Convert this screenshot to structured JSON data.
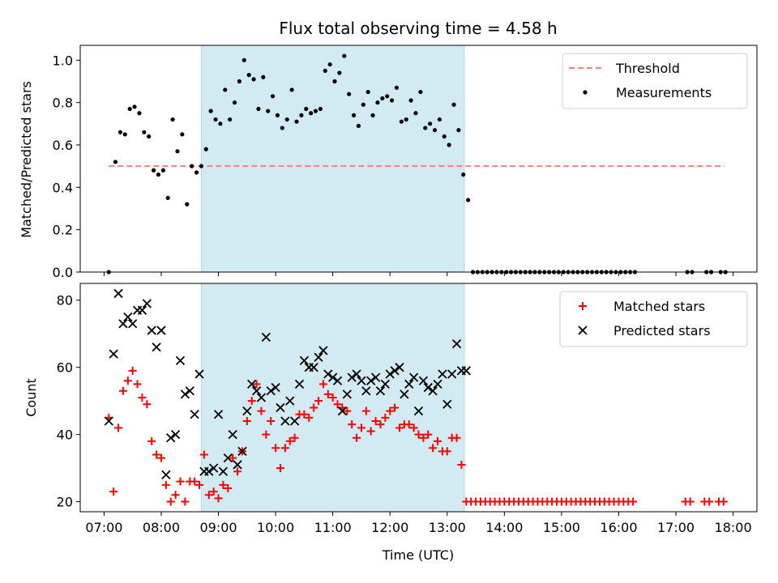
{
  "figure": {
    "title": "Flux total observing time = 4.58 h",
    "xlabel": "Time (UTC)"
  },
  "colors": {
    "threshold": "#ff7f7f",
    "measurements": "#000000",
    "matched": "#ff0000",
    "predicted": "#000000",
    "shade": "#add8e6"
  },
  "chart_data": [
    {
      "type": "scatter",
      "ylabel": "Matched/Predicted stars",
      "xlim": [
        "06:35",
        "18:25"
      ],
      "ylim": [
        0,
        1.07
      ],
      "x_tick_labels": [
        "07:00",
        "08:00",
        "09:00",
        "10:00",
        "11:00",
        "12:00",
        "13:00",
        "14:00",
        "15:00",
        "16:00",
        "17:00",
        "18:00"
      ],
      "y_ticks": [
        0.0,
        0.2,
        0.4,
        0.6,
        0.8,
        1.0
      ],
      "y_tick_labels": [
        "0.0",
        "0.2",
        "0.4",
        "0.6",
        "0.8",
        "1.0"
      ],
      "legend_position": "top-right",
      "shaded_span": [
        "08:42",
        "13:18"
      ],
      "threshold": {
        "name": "Threshold",
        "value": 0.5,
        "x_range": [
          "07:05",
          "17:51"
        ]
      },
      "series": [
        {
          "name": "Measurements",
          "x": [
            "07:05",
            "07:12",
            "07:17",
            "07:22",
            "07:27",
            "07:32",
            "07:37",
            "07:42",
            "07:47",
            "07:52",
            "07:57",
            "08:02",
            "08:07",
            "08:12",
            "08:17",
            "08:22",
            "08:27",
            "08:32",
            "08:37",
            "08:42",
            "08:47",
            "08:52",
            "08:57",
            "09:02",
            "09:07",
            "09:12",
            "09:17",
            "09:22",
            "09:27",
            "09:32",
            "09:37",
            "09:42",
            "09:47",
            "09:52",
            "09:57",
            "10:02",
            "10:07",
            "10:12",
            "10:17",
            "10:22",
            "10:27",
            "10:32",
            "10:37",
            "10:42",
            "10:47",
            "10:52",
            "10:57",
            "11:02",
            "11:07",
            "11:12",
            "11:17",
            "11:22",
            "11:27",
            "11:32",
            "11:37",
            "11:42",
            "11:47",
            "11:52",
            "11:57",
            "12:02",
            "12:07",
            "12:12",
            "12:17",
            "12:22",
            "12:27",
            "12:32",
            "12:37",
            "12:42",
            "12:47",
            "12:52",
            "12:57",
            "13:02",
            "13:07",
            "13:12",
            "13:17",
            "13:22",
            "13:27",
            "13:32",
            "13:37",
            "13:42",
            "13:47",
            "13:52",
            "13:57",
            "14:02",
            "14:07",
            "14:12",
            "14:17",
            "14:22",
            "14:27",
            "14:32",
            "14:37",
            "14:42",
            "14:47",
            "14:52",
            "14:57",
            "15:02",
            "15:07",
            "15:12",
            "15:17",
            "15:22",
            "15:27",
            "15:32",
            "15:37",
            "15:42",
            "15:47",
            "15:52",
            "15:57",
            "16:02",
            "16:07",
            "16:12",
            "16:17",
            "17:12",
            "17:17",
            "17:32",
            "17:37",
            "17:47",
            "17:52"
          ],
          "y": [
            0.0,
            0.52,
            0.66,
            0.65,
            0.77,
            0.78,
            0.75,
            0.66,
            0.64,
            0.48,
            0.46,
            0.48,
            0.35,
            0.72,
            0.57,
            0.65,
            0.32,
            0.5,
            0.47,
            0.5,
            0.58,
            0.76,
            0.72,
            0.7,
            0.86,
            0.72,
            0.8,
            0.9,
            1.0,
            0.93,
            0.91,
            0.77,
            0.92,
            0.76,
            0.83,
            0.74,
            0.68,
            0.72,
            0.86,
            0.71,
            0.74,
            0.77,
            0.75,
            0.76,
            0.77,
            0.95,
            0.98,
            0.9,
            0.94,
            1.02,
            0.84,
            0.74,
            0.69,
            0.79,
            0.85,
            0.74,
            0.8,
            0.82,
            0.83,
            0.81,
            0.87,
            0.71,
            0.72,
            0.81,
            0.75,
            0.85,
            0.68,
            0.7,
            0.67,
            0.72,
            0.64,
            0.6,
            0.79,
            0.67,
            0.46,
            0.34,
            0,
            0,
            0,
            0,
            0,
            0,
            0,
            0,
            0,
            0,
            0,
            0,
            0,
            0,
            0,
            0,
            0,
            0,
            0,
            0,
            0,
            0,
            0,
            0,
            0,
            0,
            0,
            0,
            0,
            0,
            0,
            0,
            0,
            0,
            0,
            0,
            0,
            0,
            0,
            0,
            0
          ]
        }
      ]
    },
    {
      "type": "scatter",
      "ylabel": "Count",
      "xlim": [
        "06:35",
        "18:25"
      ],
      "ylim": [
        17,
        85
      ],
      "x_tick_labels": [
        "07:00",
        "08:00",
        "09:00",
        "10:00",
        "11:00",
        "12:00",
        "13:00",
        "14:00",
        "15:00",
        "16:00",
        "17:00",
        "18:00"
      ],
      "y_ticks": [
        20,
        40,
        60,
        80
      ],
      "y_tick_labels": [
        "20",
        "40",
        "60",
        "80"
      ],
      "legend_position": "top-right",
      "shaded_span": [
        "08:42",
        "13:18"
      ],
      "series": [
        {
          "name": "Matched stars",
          "marker": "plus",
          "x": [
            "07:05",
            "07:10",
            "07:15",
            "07:20",
            "07:25",
            "07:30",
            "07:35",
            "07:40",
            "07:45",
            "07:50",
            "07:55",
            "08:00",
            "08:05",
            "08:10",
            "08:15",
            "08:20",
            "08:25",
            "08:30",
            "08:35",
            "08:40",
            "08:45",
            "08:50",
            "08:55",
            "09:00",
            "09:05",
            "09:10",
            "09:15",
            "09:20",
            "09:25",
            "09:30",
            "09:35",
            "09:40",
            "09:45",
            "09:50",
            "09:55",
            "10:00",
            "10:05",
            "10:10",
            "10:15",
            "10:20",
            "10:25",
            "10:30",
            "10:35",
            "10:40",
            "10:45",
            "10:50",
            "10:55",
            "11:00",
            "11:05",
            "11:10",
            "11:15",
            "11:20",
            "11:25",
            "11:30",
            "11:35",
            "11:40",
            "11:45",
            "11:50",
            "11:55",
            "12:00",
            "12:05",
            "12:10",
            "12:15",
            "12:20",
            "12:25",
            "12:30",
            "12:35",
            "12:40",
            "12:45",
            "12:50",
            "12:55",
            "13:00",
            "13:05",
            "13:10",
            "13:15",
            "13:20",
            "13:25",
            "13:30",
            "13:35",
            "13:40",
            "13:45",
            "13:50",
            "13:55",
            "14:00",
            "14:05",
            "14:10",
            "14:15",
            "14:20",
            "14:25",
            "14:30",
            "14:35",
            "14:40",
            "14:45",
            "14:50",
            "14:55",
            "15:00",
            "15:05",
            "15:10",
            "15:15",
            "15:20",
            "15:25",
            "15:30",
            "15:35",
            "15:40",
            "15:45",
            "15:50",
            "15:55",
            "16:00",
            "16:05",
            "16:10",
            "16:15",
            "17:10",
            "17:15",
            "17:30",
            "17:35",
            "17:45",
            "17:50"
          ],
          "y": [
            45,
            23,
            42,
            53,
            56,
            59,
            55,
            51,
            49,
            38,
            34,
            33,
            25,
            20,
            22,
            26,
            20,
            26,
            26,
            25,
            34,
            22,
            23,
            21,
            25,
            24,
            33,
            29,
            35,
            44,
            50,
            55,
            47,
            40,
            44,
            36,
            30,
            36,
            38,
            39,
            46,
            46,
            45,
            48,
            50,
            55,
            52,
            51,
            49,
            48,
            47,
            43,
            39,
            42,
            47,
            41,
            44,
            43,
            45,
            47,
            48,
            42,
            43,
            43,
            42,
            40,
            39,
            40,
            36,
            38,
            35,
            35,
            39,
            39,
            31,
            20,
            20,
            20,
            20,
            20,
            20,
            20,
            20,
            20,
            20,
            20,
            20,
            20,
            20,
            20,
            20,
            20,
            20,
            20,
            20,
            20,
            20,
            20,
            20,
            20,
            20,
            20,
            20,
            20,
            20,
            20,
            20,
            20,
            20,
            20,
            20,
            20,
            20,
            20,
            20,
            20,
            20
          ]
        },
        {
          "name": "Predicted stars",
          "marker": "x",
          "x": [
            "07:05",
            "07:10",
            "07:15",
            "07:20",
            "07:25",
            "07:30",
            "07:35",
            "07:40",
            "07:45",
            "07:50",
            "07:55",
            "08:00",
            "08:05",
            "08:10",
            "08:15",
            "08:20",
            "08:25",
            "08:30",
            "08:35",
            "08:40",
            "08:45",
            "08:50",
            "08:55",
            "09:00",
            "09:05",
            "09:10",
            "09:15",
            "09:20",
            "09:25",
            "09:30",
            "09:35",
            "09:40",
            "09:45",
            "09:50",
            "09:55",
            "10:00",
            "10:05",
            "10:10",
            "10:15",
            "10:20",
            "10:25",
            "10:30",
            "10:35",
            "10:40",
            "10:45",
            "10:50",
            "10:55",
            "11:00",
            "11:05",
            "11:10",
            "11:15",
            "11:20",
            "11:25",
            "11:30",
            "11:35",
            "11:40",
            "11:45",
            "11:50",
            "11:55",
            "12:00",
            "12:05",
            "12:10",
            "12:15",
            "12:20",
            "12:25",
            "12:30",
            "12:35",
            "12:40",
            "12:45",
            "12:50",
            "12:55",
            "13:00",
            "13:05",
            "13:10",
            "13:15",
            "13:20"
          ],
          "y": [
            44,
            64,
            82,
            73,
            75,
            73,
            77,
            77,
            79,
            71,
            66,
            71,
            28,
            39,
            40,
            62,
            52,
            53,
            46,
            58,
            29,
            29,
            30,
            46,
            29,
            33,
            40,
            31,
            35,
            47,
            55,
            53,
            51,
            69,
            53,
            54,
            48,
            44,
            50,
            44,
            55,
            62,
            60,
            60,
            63,
            65,
            58,
            57,
            56,
            47,
            52,
            57,
            58,
            56,
            53,
            56,
            57,
            53,
            55,
            58,
            59,
            60,
            52,
            55,
            57,
            47,
            56,
            54,
            53,
            55,
            58,
            49,
            58,
            67,
            59,
            59
          ]
        }
      ]
    }
  ]
}
